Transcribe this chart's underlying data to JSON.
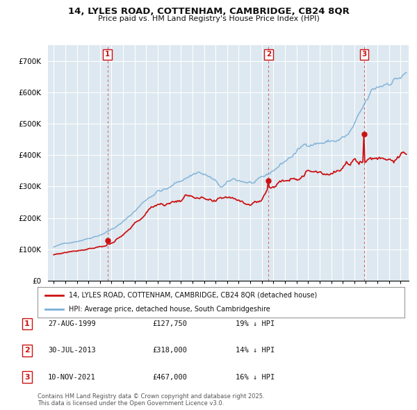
{
  "title_line1": "14, LYLES ROAD, COTTENHAM, CAMBRIDGE, CB24 8QR",
  "title_line2": "Price paid vs. HM Land Registry's House Price Index (HPI)",
  "background_color": "#ffffff",
  "plot_bg_color": "#dde8f0",
  "grid_color": "#ffffff",
  "hpi_color": "#7aaed6",
  "price_color": "#cc1111",
  "ylim": [
    0,
    750000
  ],
  "yticks": [
    0,
    100000,
    200000,
    300000,
    400000,
    500000,
    600000,
    700000
  ],
  "ytick_labels": [
    "£0",
    "£100K",
    "£200K",
    "£300K",
    "£400K",
    "£500K",
    "£600K",
    "£700K"
  ],
  "sales": [
    {
      "date_num": 1999.65,
      "price": 127750,
      "label": "1"
    },
    {
      "date_num": 2013.58,
      "price": 318000,
      "label": "2"
    },
    {
      "date_num": 2021.86,
      "price": 467000,
      "label": "3"
    }
  ],
  "legend_line1": "14, LYLES ROAD, COTTENHAM, CAMBRIDGE, CB24 8QR (detached house)",
  "legend_line2": "HPI: Average price, detached house, South Cambridgeshire",
  "table_rows": [
    {
      "num": "1",
      "date": "27-AUG-1999",
      "price": "£127,750",
      "note": "19% ↓ HPI"
    },
    {
      "num": "2",
      "date": "30-JUL-2013",
      "price": "£318,000",
      "note": "14% ↓ HPI"
    },
    {
      "num": "3",
      "date": "10-NOV-2021",
      "price": "£467,000",
      "note": "16% ↓ HPI"
    }
  ],
  "footnote": "Contains HM Land Registry data © Crown copyright and database right 2025.\nThis data is licensed under the Open Government Licence v3.0.",
  "xmin": 1994.5,
  "xmax": 2025.7
}
